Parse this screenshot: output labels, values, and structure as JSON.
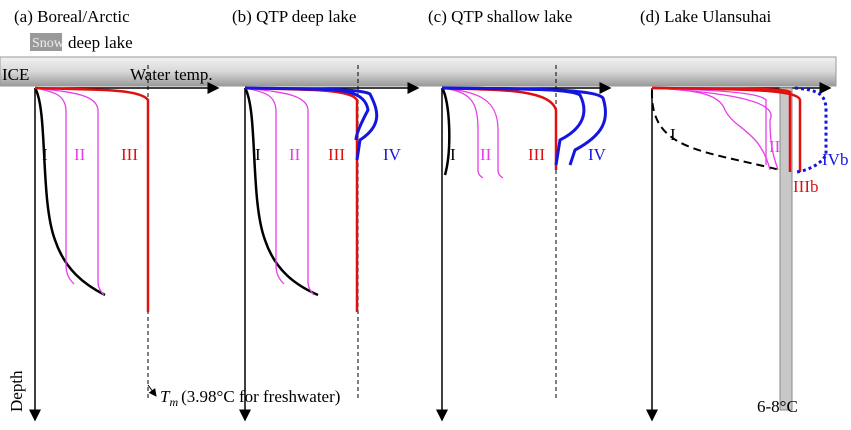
{
  "panels": [
    {
      "title": "(a) Boreal/Arctic",
      "curve_labels": [
        "I",
        "II",
        "III"
      ]
    },
    {
      "title": "(b) QTP deep lake",
      "curve_labels": [
        "I",
        "II",
        "III",
        "IV"
      ]
    },
    {
      "title": "(c) QTP shallow lake",
      "curve_labels": [
        "I",
        "II",
        "III",
        "IV"
      ]
    },
    {
      "title": "(d) Lake Ulansuhai",
      "curve_labels": [
        "I",
        "II",
        "IIIb",
        "IVb"
      ]
    }
  ],
  "legend": {
    "swatch": "Snow",
    "text": "deep lake"
  },
  "axes": {
    "ice": "ICE",
    "x": "Water temp.",
    "y": "Depth"
  },
  "annotations": {
    "tm_symbol": "T",
    "tm_sub": "m",
    "tm_text": "(3.98°C for freshwater)",
    "range": "6-8°C"
  }
}
